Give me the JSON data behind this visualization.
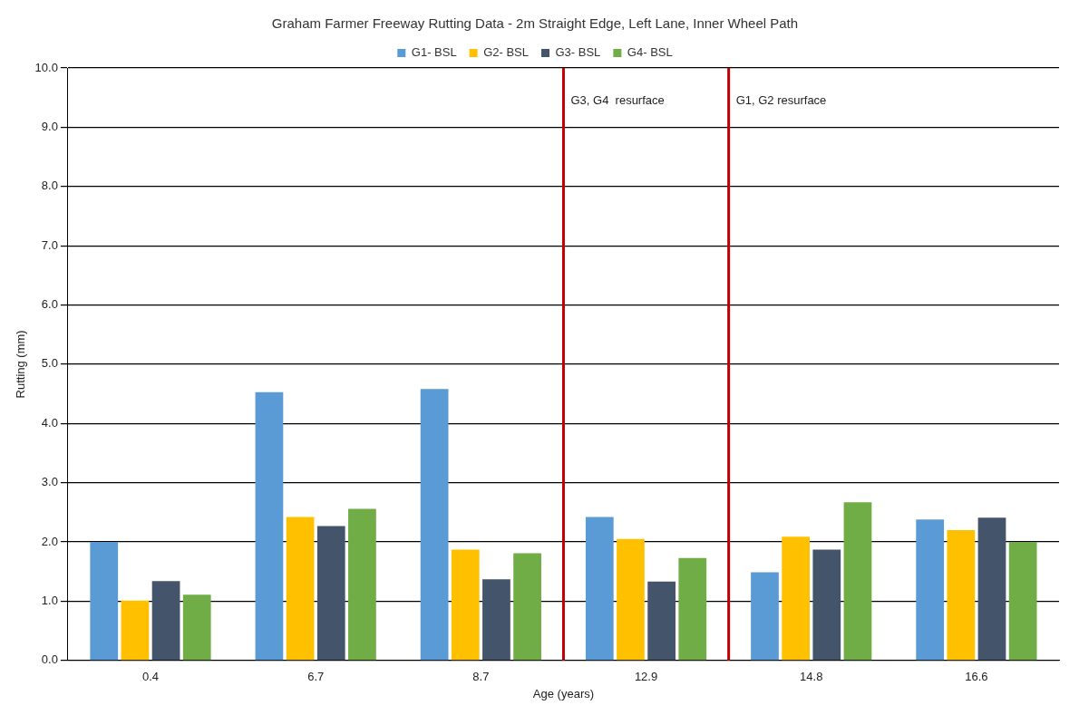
{
  "chart_data": {
    "type": "bar",
    "title": "Graham Farmer Freeway Rutting Data - 2m Straight Edge, Left Lane, Inner Wheel Path",
    "xlabel": "Age (years)",
    "ylabel": "Rutting (mm)",
    "categories": [
      "0.4",
      "6.7",
      "8.7",
      "12.9",
      "14.8",
      "16.6"
    ],
    "series": [
      {
        "name": "G1- BSL",
        "color": "#5b9bd5",
        "values": [
          2.0,
          4.53,
          4.58,
          2.42,
          1.49,
          2.38
        ]
      },
      {
        "name": "G2- BSL",
        "color": "#ffc000",
        "values": [
          1.01,
          2.42,
          1.87,
          2.05,
          2.09,
          2.2
        ]
      },
      {
        "name": "G3- BSL",
        "color": "#44546a",
        "values": [
          1.34,
          2.27,
          1.37,
          1.33,
          1.87,
          2.41
        ]
      },
      {
        "name": "G4- BSL",
        "color": "#70ad47",
        "values": [
          1.11,
          2.56,
          1.81,
          1.73,
          2.67,
          2.0
        ]
      }
    ],
    "ylim": [
      0,
      10
    ],
    "yticks": [
      {
        "value": 0,
        "label": "0.0"
      },
      {
        "value": 1,
        "label": "1.0"
      },
      {
        "value": 2,
        "label": "2.0"
      },
      {
        "value": 3,
        "label": "3.0"
      },
      {
        "value": 4,
        "label": "4.0"
      },
      {
        "value": 5,
        "label": "5.0"
      },
      {
        "value": 6,
        "label": "6.0"
      },
      {
        "value": 7,
        "label": "7.0"
      },
      {
        "value": 8,
        "label": "8.0"
      },
      {
        "value": 9,
        "label": "9.0"
      },
      {
        "value": 10,
        "label": "10.0"
      }
    ],
    "grid": "y",
    "legend": "top",
    "annotations": [
      "G3, G4  resurface",
      "G1, G2 resurface"
    ]
  }
}
